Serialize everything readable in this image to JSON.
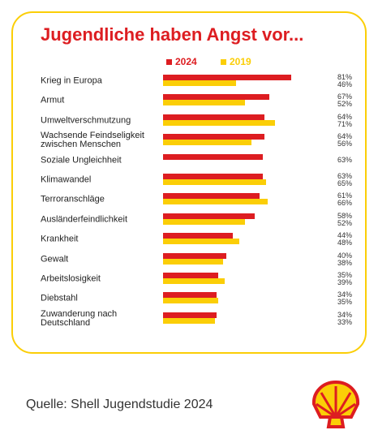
{
  "chart_data": {
    "type": "bar",
    "orientation": "horizontal",
    "title": "Jugendliche haben Angst vor...",
    "categories": [
      "Krieg in Europa",
      "Armut",
      "Umweltverschmutzung",
      "Wachsende Feindseligkeit\nzwischen Menschen",
      "Soziale Ungleichheit",
      "Klimawandel",
      "Terroranschläge",
      "Ausländerfeindlichkeit",
      "Krankheit",
      "Gewalt",
      "Arbeitslosigkeit",
      "Diebstahl",
      "Zuwanderung nach\nDeutschland"
    ],
    "series": [
      {
        "name": "2024",
        "color": "#dd1d21",
        "values": [
          81,
          67,
          64,
          64,
          63,
          63,
          61,
          58,
          44,
          40,
          35,
          34,
          34
        ],
        "value_labels": [
          "81%",
          "67%",
          "64%",
          "64%",
          "63%",
          "63%",
          "61%",
          "58%",
          "44%",
          "40%",
          "35%",
          "34%",
          "34%"
        ]
      },
      {
        "name": "2019",
        "color": "#fbce07",
        "values": [
          46,
          52,
          71,
          56,
          null,
          65,
          66,
          52,
          48,
          38,
          39,
          35,
          33
        ],
        "value_labels": [
          "46%",
          "52%",
          "71%",
          "56%",
          null,
          "65%",
          "66%",
          "52%",
          "48%",
          "38%",
          "39%",
          "35%",
          "33%"
        ]
      }
    ],
    "source": "Quelle: Shell Jugendstudie 2024"
  }
}
